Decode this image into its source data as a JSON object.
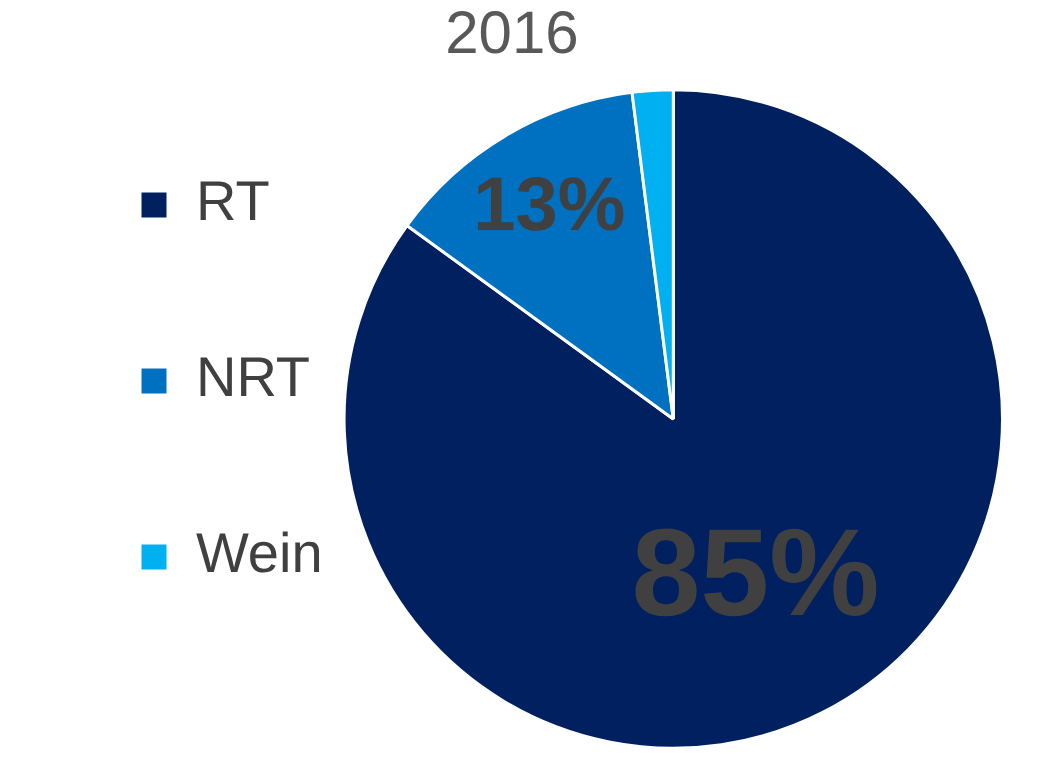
{
  "chart_data": {
    "type": "pie",
    "title": "2016",
    "categories": [
      "RT",
      "NRT",
      "Wein"
    ],
    "values": [
      85,
      13,
      2
    ],
    "colors": [
      "#002060",
      "#0070c0",
      "#00b0f0"
    ],
    "value_labels": [
      "85%",
      "13%",
      null
    ],
    "legend": "left"
  }
}
